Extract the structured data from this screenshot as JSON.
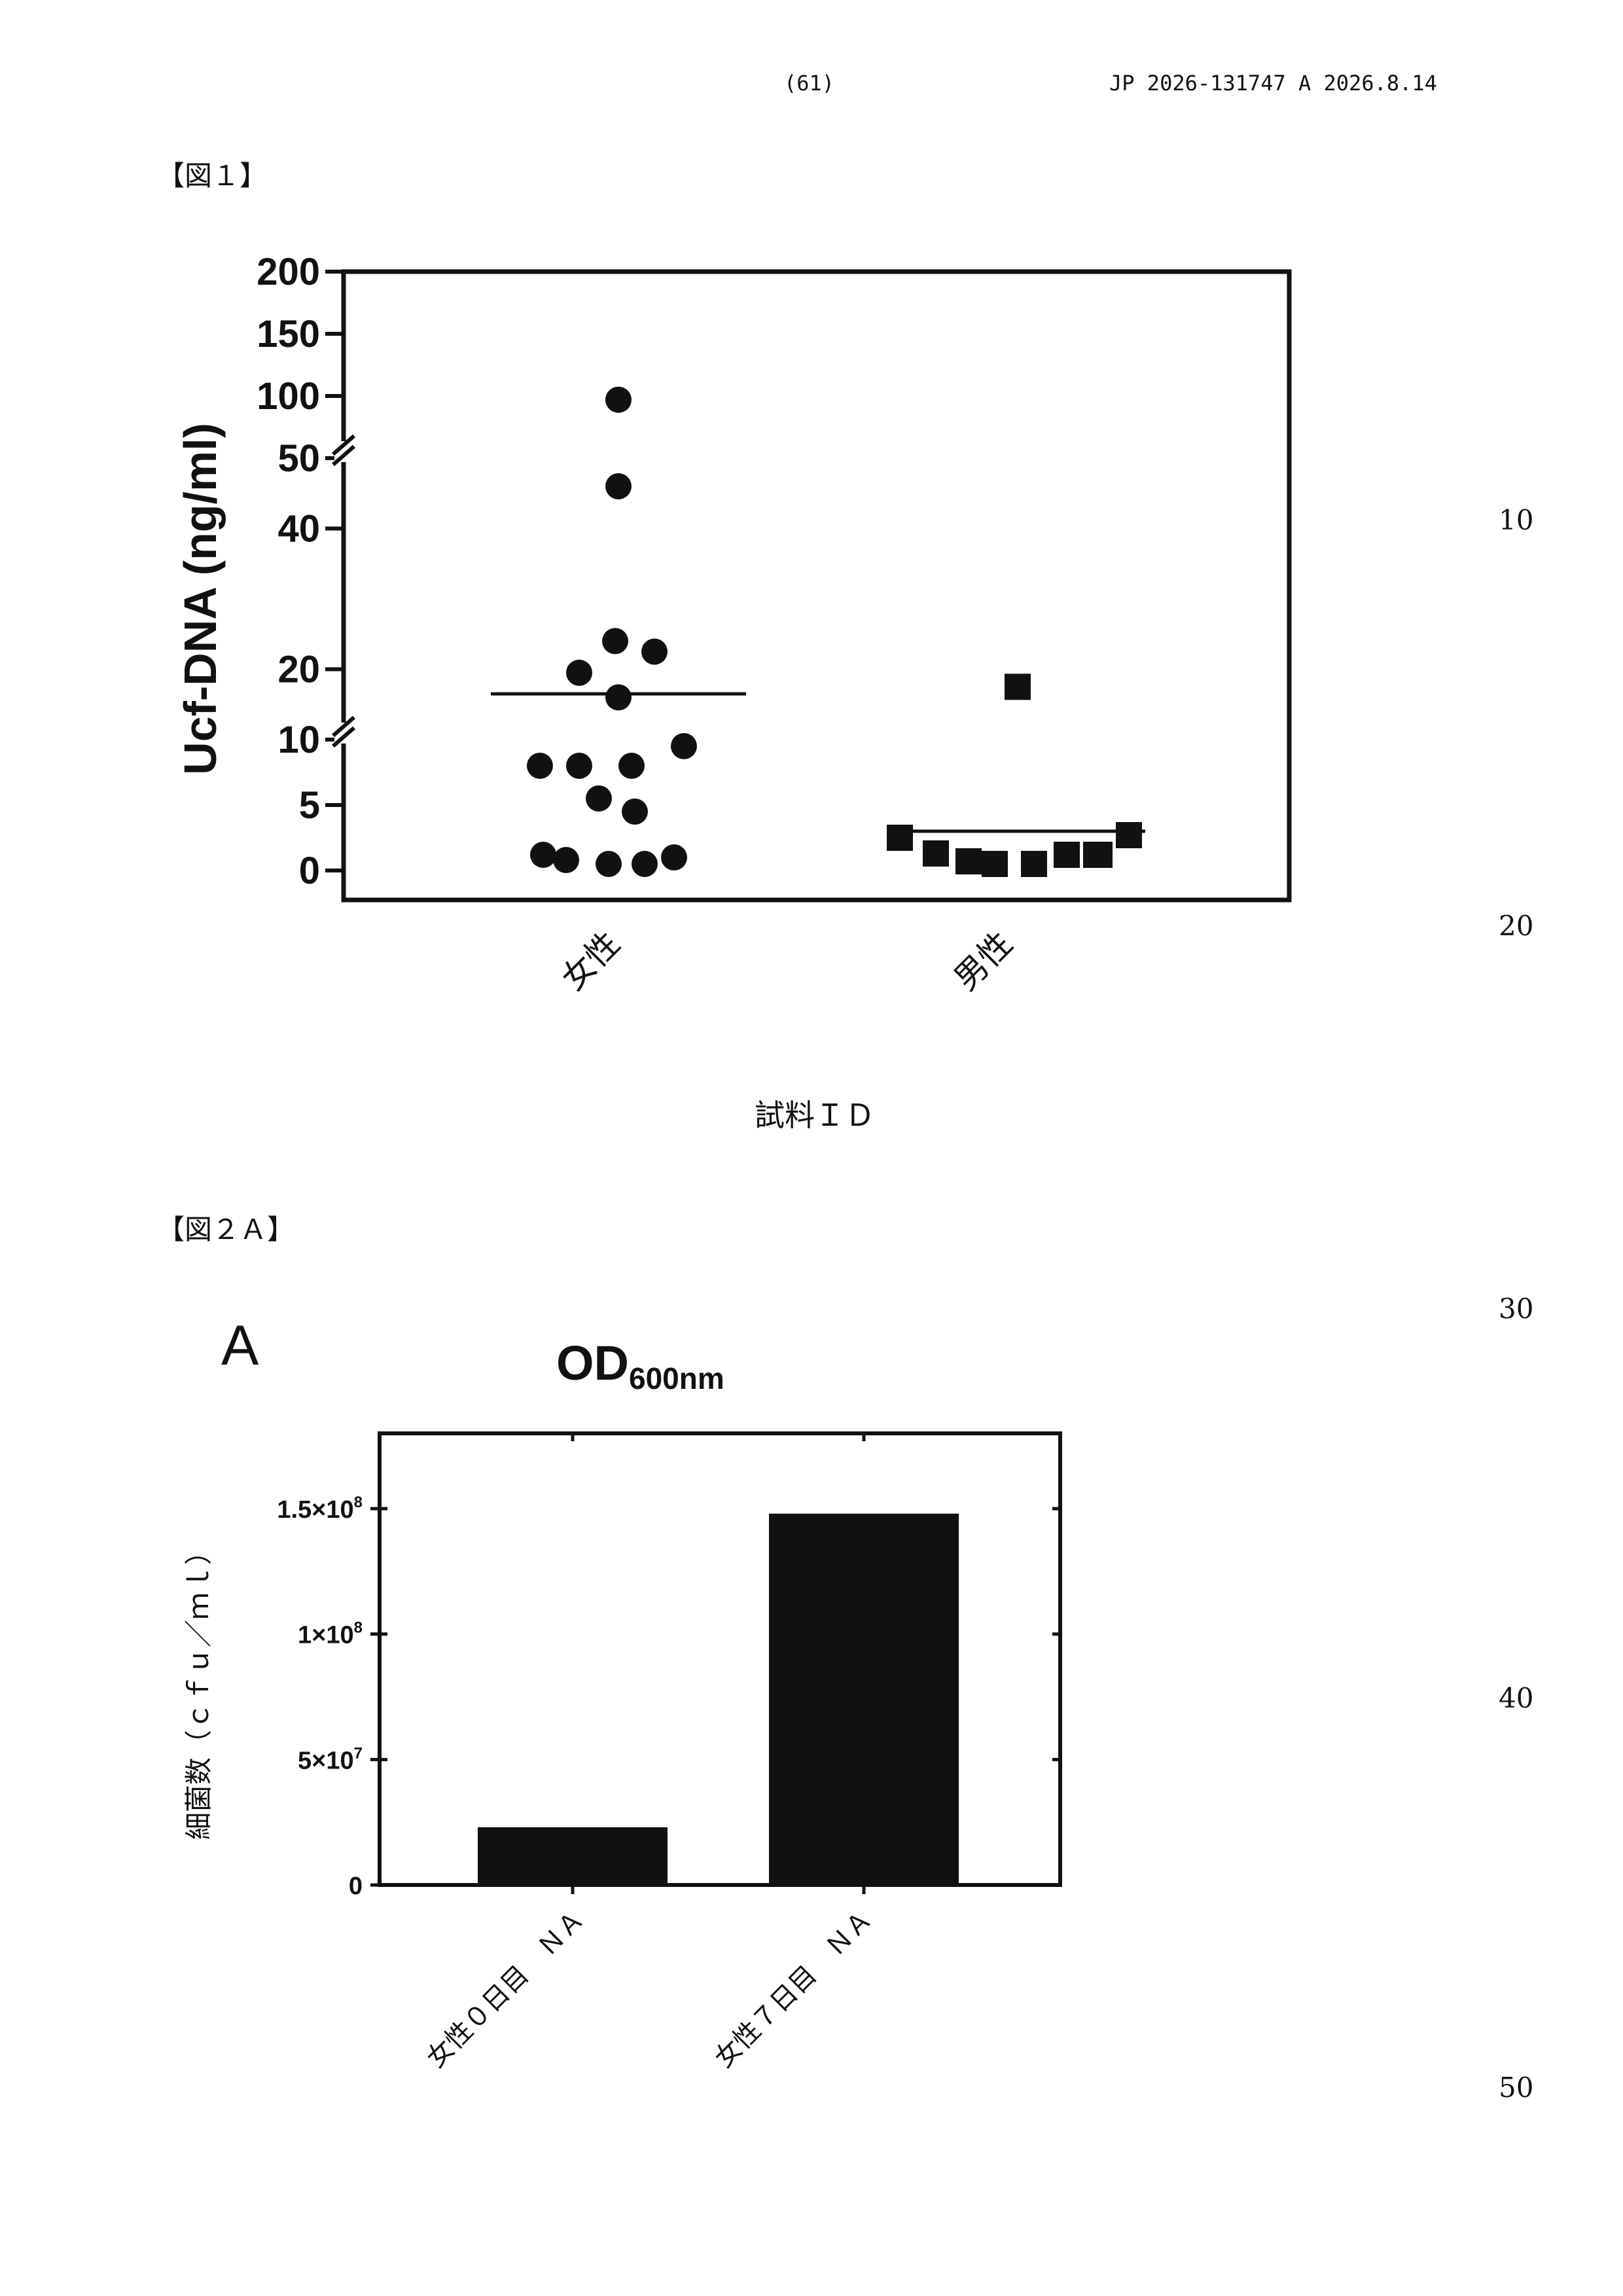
{
  "header": {
    "page_number": "(61)",
    "publication": "JP  2026-131747  A  2026.8.14"
  },
  "line_numbers": [
    "10",
    "20",
    "30",
    "40",
    "50"
  ],
  "figures": {
    "fig1_label": "【図１】",
    "fig2a_label": "【図２Ａ】"
  },
  "chart_data": [
    {
      "type": "scatter",
      "ylabel": "Ucf-DNA (ng/ml)",
      "xlabel": "試料ＩＤ",
      "categories": [
        "女性",
        "男性"
      ],
      "y_axis": {
        "broken": true,
        "segments": [
          {
            "range": [
              0,
              10
            ],
            "ticks": [
              "0",
              "5",
              "10"
            ]
          },
          {
            "range": [
              10,
              50
            ],
            "ticks": [
              "20",
              "40"
            ]
          },
          {
            "range": [
              50,
              200
            ],
            "ticks": [
              "50",
              "100",
              "150",
              "200"
            ]
          }
        ]
      },
      "series": [
        {
          "category": "女性",
          "marker": "circle",
          "values": [
            97,
            46,
            24,
            22.5,
            19.5,
            16,
            9.5,
            8,
            8,
            8,
            5.5,
            4.5,
            1.2,
            0.8,
            0.5,
            0.5,
            1
          ],
          "mean": 16.5
        },
        {
          "category": "男性",
          "marker": "square",
          "values": [
            17.5,
            2.5,
            2.7,
            1.3,
            1.2,
            0.7,
            0.5,
            0.5,
            1.2,
            1.2
          ],
          "mean": 3
        }
      ]
    },
    {
      "type": "bar",
      "panel_letter": "A",
      "title_main": "OD",
      "title_sub": "600nm",
      "ylabel": "細菌数（ｃｆｕ／ｍｌ）",
      "categories": [
        "女性０日目　ＮＡ",
        "女性７日目　ＮＡ"
      ],
      "values": [
        23000000,
        148000000
      ],
      "ylim": [
        0,
        180000000
      ],
      "yticks": [
        {
          "value": 0,
          "label": "0"
        },
        {
          "value": 50000000,
          "label": "5×10",
          "exp": "7"
        },
        {
          "value": 100000000,
          "label": "1×10",
          "exp": "8"
        },
        {
          "value": 150000000,
          "label": "1.5×10",
          "exp": "8"
        }
      ]
    }
  ]
}
